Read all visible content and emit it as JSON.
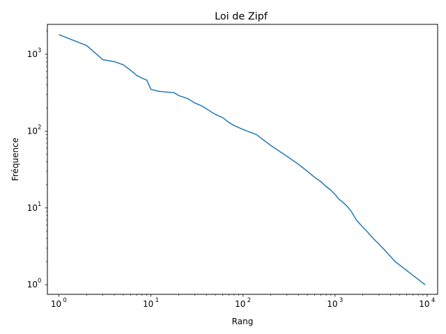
{
  "chart_data": {
    "type": "line",
    "title": "Loi de Zipf",
    "xlabel": "Rang",
    "ylabel": "Fréquence",
    "x_scale": "log",
    "y_scale": "log",
    "xlim": [
      0.75,
      13000
    ],
    "ylim": [
      0.75,
      2450
    ],
    "grid": false,
    "line_color": "#1f77b4",
    "x_ticks": [
      {
        "value": 1,
        "base": "10",
        "exp": "0"
      },
      {
        "value": 10,
        "base": "10",
        "exp": "1"
      },
      {
        "value": 100,
        "base": "10",
        "exp": "2"
      },
      {
        "value": 1000,
        "base": "10",
        "exp": "3"
      },
      {
        "value": 10000,
        "base": "10",
        "exp": "4"
      }
    ],
    "y_ticks": [
      {
        "value": 1,
        "base": "10",
        "exp": "0"
      },
      {
        "value": 10,
        "base": "10",
        "exp": "1"
      },
      {
        "value": 100,
        "base": "10",
        "exp": "2"
      },
      {
        "value": 1000,
        "base": "10",
        "exp": "3"
      }
    ],
    "series": [
      {
        "x": [
          1,
          2,
          3,
          4,
          5,
          6,
          7,
          8,
          9,
          10,
          12,
          15,
          18,
          20,
          25,
          30,
          35,
          40,
          50,
          60,
          70,
          80,
          100,
          140,
          200,
          300,
          400,
          500,
          600,
          700,
          800,
          900,
          1000,
          1100,
          1200,
          1300,
          1400,
          1500,
          1700,
          1900,
          2200,
          2600,
          3300,
          4500,
          9500
        ],
        "y": [
          1800,
          1300,
          850,
          800,
          730,
          620,
          530,
          490,
          460,
          350,
          330,
          322,
          315,
          290,
          265,
          232,
          215,
          195,
          165,
          150,
          130,
          118,
          105,
          90,
          65,
          47,
          37,
          30,
          25,
          22,
          19,
          17,
          15,
          13,
          12,
          11,
          10,
          9,
          7,
          6,
          5,
          4,
          3,
          2,
          1
        ]
      }
    ]
  }
}
